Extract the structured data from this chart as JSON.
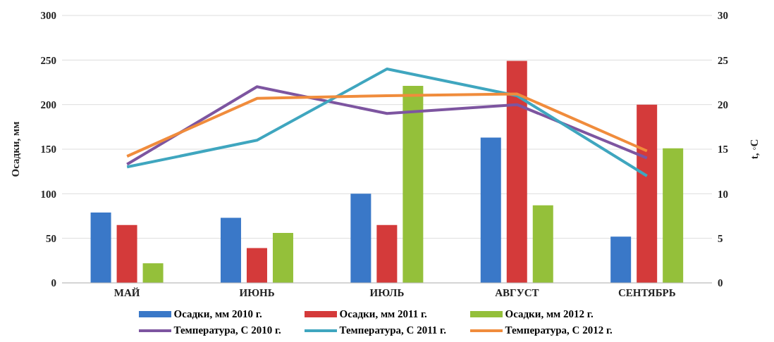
{
  "chart_data": {
    "type": "bar",
    "ylabel": "Осадки, мм",
    "y2label": "t, ◦C",
    "categories": [
      "МАЙ",
      "ИЮНЬ",
      "ИЮЛЬ",
      "АВГУСТ",
      "СЕНТЯБРЬ"
    ],
    "series": [
      {
        "name": "Осадки, мм 2010 г.",
        "color": "#3a78c8",
        "values": [
          79,
          73,
          100,
          163,
          52
        ]
      },
      {
        "name": "Осадки, мм 2011 г.",
        "color": "#d43a3a",
        "values": [
          65,
          39,
          65,
          249,
          200
        ]
      },
      {
        "name": "Осадки, мм 2012 г.",
        "color": "#94c03a",
        "values": [
          22,
          56,
          221,
          87,
          151
        ]
      },
      {
        "name": "Температура, С 2010 г.",
        "type": "line",
        "axis": "y2",
        "color": "#7d55a0",
        "values": [
          13.3,
          22,
          19,
          20,
          14
        ]
      },
      {
        "name": "Температура, С 2011 г.",
        "type": "line",
        "axis": "y2",
        "color": "#3fa6bf",
        "values": [
          13,
          16,
          24,
          21,
          12
        ]
      },
      {
        "name": "Температура, С 2012 г.",
        "type": "line",
        "axis": "y2",
        "color": "#f08c3c",
        "values": [
          14.2,
          20.7,
          21,
          21.2,
          14.8
        ]
      }
    ],
    "ylim": [
      0,
      300
    ],
    "yticks": [
      0,
      50,
      100,
      150,
      200,
      250,
      300
    ],
    "y2lim": [
      0,
      30
    ],
    "y2ticks": [
      0,
      5,
      10,
      15,
      20,
      25,
      30
    ],
    "grid": "y",
    "legend": "bottom",
    "marker": "none"
  }
}
